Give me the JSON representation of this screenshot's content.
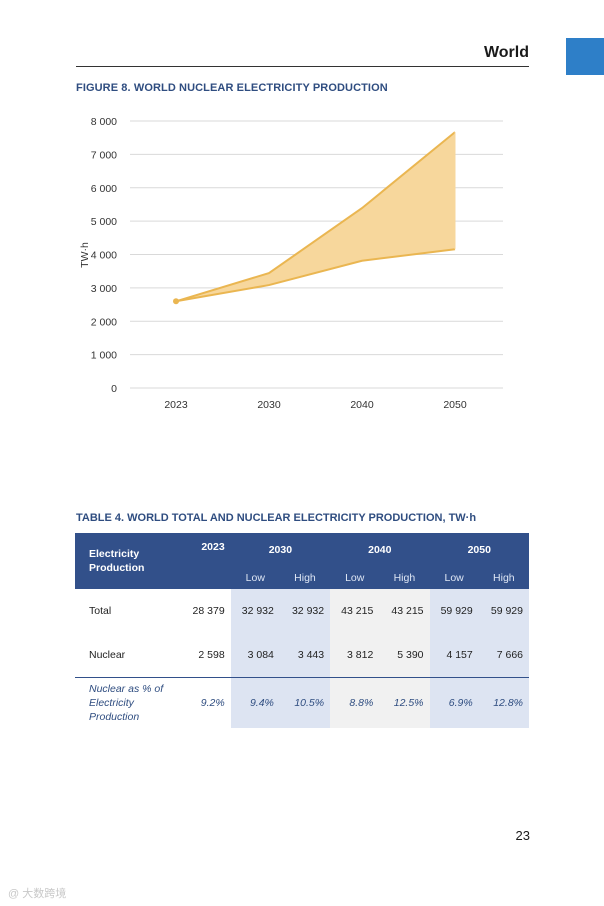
{
  "header": {
    "section": "World",
    "page_number": "23"
  },
  "figure": {
    "title": "FIGURE 8. WORLD NUCLEAR ELECTRICITY PRODUCTION"
  },
  "chart_data": {
    "type": "area",
    "x": [
      "2023",
      "2030",
      "2040",
      "2050"
    ],
    "series": [
      {
        "values": [
          2598,
          3084,
          3812,
          4157
        ]
      },
      {
        "values": [
          2598,
          3443,
          5390,
          7666
        ]
      }
    ],
    "ylabel": "TW·h",
    "ylim": [
      0,
      8000
    ],
    "yticks": [
      0,
      1000,
      2000,
      3000,
      4000,
      5000,
      6000,
      7000,
      8000
    ],
    "ytick_labels": [
      "0",
      "1 000",
      "2 000",
      "3 000",
      "4 000",
      "5 000",
      "6 000",
      "7 000",
      "8 000"
    ],
    "grid": true,
    "colors": {
      "line": "#eab651",
      "fill": "#f7d79c",
      "grid": "#d9d9d9"
    }
  },
  "table": {
    "title": "TABLE 4. WORLD TOTAL AND NUCLEAR ELECTRICITY PRODUCTION, TW·h",
    "header": {
      "row_label": [
        "Electricity",
        "Production"
      ],
      "years": [
        "2023",
        "2030",
        "2040",
        "2050"
      ],
      "low": "Low",
      "high": "High"
    },
    "rows": [
      {
        "label": "Total",
        "values": [
          "28 379",
          "32 932",
          "32 932",
          "43 215",
          "43 215",
          "59 929",
          "59 929"
        ]
      },
      {
        "label": "Nuclear",
        "values": [
          "2 598",
          "3 084",
          "3 443",
          "3 812",
          "5 390",
          "4 157",
          "7 666"
        ]
      }
    ],
    "pct_row": {
      "label": [
        "Nuclear as % of",
        "Electricity Production"
      ],
      "values": [
        "9.2%",
        "9.4%",
        "10.5%",
        "8.8%",
        "12.5%",
        "6.9%",
        "12.8%"
      ]
    },
    "colors": {
      "header": "#32508a",
      "shade": "#dde4f2",
      "grey": "#f1f1f1",
      "accent": "#2f4d80"
    }
  },
  "watermark": "@ 大数跨境"
}
